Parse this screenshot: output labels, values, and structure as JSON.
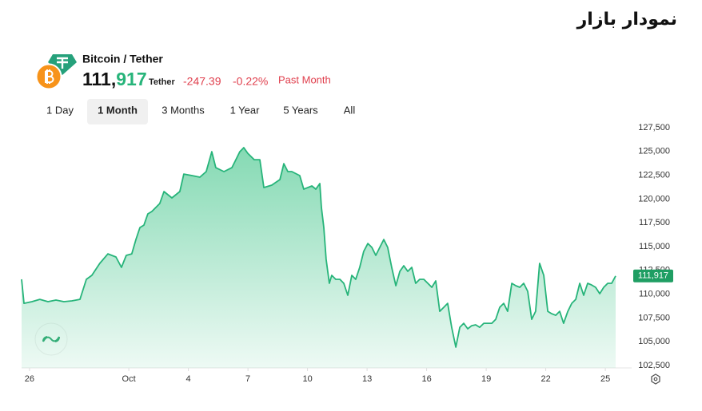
{
  "title": "نمودار بازار",
  "header": {
    "pair": "Bitcoin / Tether",
    "price_int": "111,",
    "price_frac": "917",
    "unit": "Tether",
    "change": "-247.39",
    "change_pct": "-0.22%",
    "period": "Past Month"
  },
  "tabs": [
    "1 Day",
    "1 Month",
    "3 Months",
    "1 Year",
    "5 Years",
    "All"
  ],
  "active_tab": "1 Month",
  "chart_data": {
    "type": "area",
    "color": "#27b47a",
    "fill_color": "#6fd3a6",
    "grid": false,
    "xlim": [
      -0.4,
      29.6
    ],
    "ylim": [
      102250,
      128340
    ],
    "xticks": [
      {
        "value": 0,
        "label": "26"
      },
      {
        "value": 5,
        "label": "Oct"
      },
      {
        "value": 8,
        "label": "4"
      },
      {
        "value": 11,
        "label": "7"
      },
      {
        "value": 14,
        "label": "10"
      },
      {
        "value": 17,
        "label": "13"
      },
      {
        "value": 20,
        "label": "16"
      },
      {
        "value": 23,
        "label": "19"
      },
      {
        "value": 26,
        "label": "22"
      },
      {
        "value": 29,
        "label": "25"
      }
    ],
    "yticks": [
      {
        "value": 102500,
        "label": "102,500"
      },
      {
        "value": 105000,
        "label": "105,000"
      },
      {
        "value": 107500,
        "label": "107,500"
      },
      {
        "value": 110000,
        "label": "110,000"
      },
      {
        "value": 112500,
        "label": "112,500"
      },
      {
        "value": 115000,
        "label": "115,000"
      },
      {
        "value": 117500,
        "label": "117,500"
      },
      {
        "value": 120000,
        "label": "120,000"
      },
      {
        "value": 122500,
        "label": "122,500"
      },
      {
        "value": 125000,
        "label": "125,000"
      },
      {
        "value": 127500,
        "label": "127,500"
      }
    ],
    "last_price": {
      "value": 111917,
      "label": "111,917"
    },
    "x": [
      -0.4,
      -0.28,
      0.12,
      0.52,
      0.93,
      1.33,
      1.73,
      2.13,
      2.54,
      2.86,
      3.14,
      3.54,
      3.95,
      4.35,
      4.63,
      4.87,
      5.15,
      5.36,
      5.56,
      5.76,
      5.96,
      6.16,
      6.56,
      6.77,
      7.17,
      7.57,
      7.77,
      8.18,
      8.58,
      8.9,
      9.18,
      9.38,
      9.79,
      10.19,
      10.39,
      10.59,
      10.79,
      10.99,
      11.32,
      11.6,
      11.8,
      12.2,
      12.61,
      12.81,
      13.01,
      13.21,
      13.61,
      13.81,
      14.22,
      14.42,
      14.62,
      14.7,
      14.82,
      14.94,
      15.1,
      15.22,
      15.42,
      15.63,
      15.83,
      16.03,
      16.23,
      16.43,
      16.63,
      16.83,
      17.04,
      17.24,
      17.44,
      17.64,
      17.84,
      18.04,
      18.24,
      18.45,
      18.65,
      18.85,
      19.05,
      19.25,
      19.45,
      19.65,
      19.86,
      20.06,
      20.26,
      20.46,
      20.66,
      20.86,
      21.06,
      21.26,
      21.47,
      21.67,
      21.87,
      22.07,
      22.27,
      22.47,
      22.67,
      22.88,
      23.08,
      23.28,
      23.48,
      23.68,
      23.88,
      24.08,
      24.29,
      24.49,
      24.69,
      24.89,
      25.09,
      25.29,
      25.49,
      25.69,
      25.9,
      26.1,
      26.3,
      26.5,
      26.7,
      26.9,
      27.11,
      27.31,
      27.51,
      27.71,
      27.91,
      28.11,
      28.31,
      28.51,
      28.72,
      28.92,
      29.12,
      29.32,
      29.52
    ],
    "values": [
      111560,
      109040,
      109210,
      109460,
      109210,
      109380,
      109210,
      109300,
      109460,
      111560,
      111980,
      113240,
      114240,
      113910,
      112820,
      114080,
      114240,
      115750,
      117010,
      117260,
      118440,
      118690,
      119530,
      120790,
      120120,
      120790,
      122630,
      122470,
      122300,
      122890,
      124980,
      123300,
      122890,
      123300,
      124140,
      124980,
      125400,
      124810,
      124140,
      124140,
      121210,
      121460,
      122050,
      123720,
      122890,
      122890,
      122470,
      121040,
      121380,
      121040,
      121630,
      119110,
      117010,
      113660,
      111140,
      111980,
      111560,
      111560,
      111140,
      109880,
      111980,
      111560,
      112820,
      114500,
      115330,
      114920,
      114080,
      114920,
      115750,
      114920,
      112820,
      110890,
      112400,
      112990,
      112400,
      112820,
      111140,
      111560,
      111560,
      111140,
      110720,
      111390,
      108200,
      108620,
      109040,
      106520,
      104430,
      106520,
      106940,
      106360,
      106690,
      106780,
      106520,
      106940,
      106940,
      106940,
      107360,
      108620,
      109040,
      108200,
      111140,
      110890,
      110720,
      111140,
      110300,
      107360,
      108200,
      113240,
      111980,
      108200,
      107950,
      107780,
      108200,
      106940,
      108200,
      109040,
      109460,
      111140,
      109880,
      111140,
      110970,
      110720,
      110050,
      110720,
      111140,
      111140,
      111917
    ]
  }
}
